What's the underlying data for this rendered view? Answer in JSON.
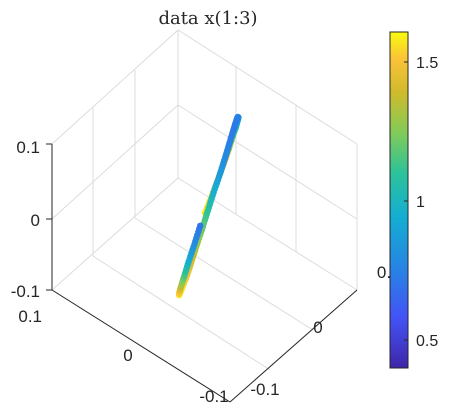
{
  "chart_data": {
    "type": "scatter",
    "plot_kind": "3d-scatter",
    "title": "data x(1:3)",
    "xlabel": "",
    "ylabel": "",
    "zlabel": "",
    "x_ticks": [
      "0.1",
      "0",
      "-0.1"
    ],
    "y_ticks": [
      "-0.1",
      "0",
      "0."
    ],
    "z_ticks": [
      "0.1",
      "0",
      "-0.1"
    ],
    "xlim": [
      -0.12,
      0.12
    ],
    "ylim": [
      -0.12,
      0.12
    ],
    "zlim": [
      -0.1,
      0.1
    ],
    "grid": true,
    "colormap": "parula",
    "colorbar": {
      "ticks": [
        "1.5",
        "1",
        "0.5"
      ],
      "tick_values": [
        1.5,
        1.0,
        0.5
      ],
      "range": [
        0.4,
        1.6
      ]
    },
    "series": [
      {
        "marker": "filled-circle",
        "points": [
          {
            "x": 0.0,
            "y": 0.0,
            "z": 0.0,
            "c": 1.58
          },
          {
            "x": 0.006,
            "y": 0.015,
            "z": 0.012,
            "c": 1.55
          },
          {
            "x": 0.013,
            "y": 0.03,
            "z": 0.023,
            "c": 1.5
          },
          {
            "x": 0.02,
            "y": 0.044,
            "z": 0.033,
            "c": 1.42
          },
          {
            "x": 0.027,
            "y": 0.057,
            "z": 0.042,
            "c": 1.32
          },
          {
            "x": 0.034,
            "y": 0.068,
            "z": 0.049,
            "c": 1.2
          },
          {
            "x": 0.04,
            "y": 0.078,
            "z": 0.054,
            "c": 1.08
          },
          {
            "x": 0.045,
            "y": 0.085,
            "z": 0.058,
            "c": 0.95
          },
          {
            "x": 0.048,
            "y": 0.089,
            "z": 0.06,
            "c": 0.85
          },
          {
            "x": 0.05,
            "y": 0.09,
            "z": 0.06,
            "c": 0.78
          },
          {
            "x": 0.049,
            "y": 0.088,
            "z": 0.059,
            "c": 0.74
          },
          {
            "x": 0.046,
            "y": 0.083,
            "z": 0.056,
            "c": 0.72
          },
          {
            "x": 0.041,
            "y": 0.075,
            "z": 0.051,
            "c": 0.72
          },
          {
            "x": 0.034,
            "y": 0.064,
            "z": 0.044,
            "c": 0.74
          },
          {
            "x": 0.026,
            "y": 0.051,
            "z": 0.035,
            "c": 0.78
          },
          {
            "x": 0.017,
            "y": 0.036,
            "z": 0.025,
            "c": 0.85
          },
          {
            "x": 0.008,
            "y": 0.019,
            "z": 0.013,
            "c": 0.95
          },
          {
            "x": -0.002,
            "y": 0.002,
            "z": 0.001,
            "c": 1.08
          },
          {
            "x": -0.012,
            "y": -0.015,
            "z": -0.011,
            "c": 1.2
          },
          {
            "x": -0.021,
            "y": -0.031,
            "z": -0.022,
            "c": 1.3
          },
          {
            "x": -0.029,
            "y": -0.045,
            "z": -0.032,
            "c": 1.4
          },
          {
            "x": -0.036,
            "y": -0.057,
            "z": -0.04,
            "c": 1.48
          },
          {
            "x": -0.041,
            "y": -0.067,
            "z": -0.046,
            "c": 1.54
          },
          {
            "x": -0.044,
            "y": -0.073,
            "z": -0.05,
            "c": 1.58
          },
          {
            "x": -0.045,
            "y": -0.076,
            "z": -0.052,
            "c": 1.58
          },
          {
            "x": -0.043,
            "y": -0.074,
            "z": -0.051,
            "c": 1.52
          },
          {
            "x": -0.039,
            "y": -0.068,
            "z": -0.047,
            "c": 1.35
          },
          {
            "x": -0.033,
            "y": -0.058,
            "z": -0.04,
            "c": 1.15
          },
          {
            "x": -0.025,
            "y": -0.045,
            "z": -0.031,
            "c": 0.95
          },
          {
            "x": -0.016,
            "y": -0.029,
            "z": -0.02,
            "c": 0.8
          },
          {
            "x": -0.006,
            "y": -0.012,
            "z": -0.008,
            "c": 0.7
          }
        ]
      }
    ]
  }
}
